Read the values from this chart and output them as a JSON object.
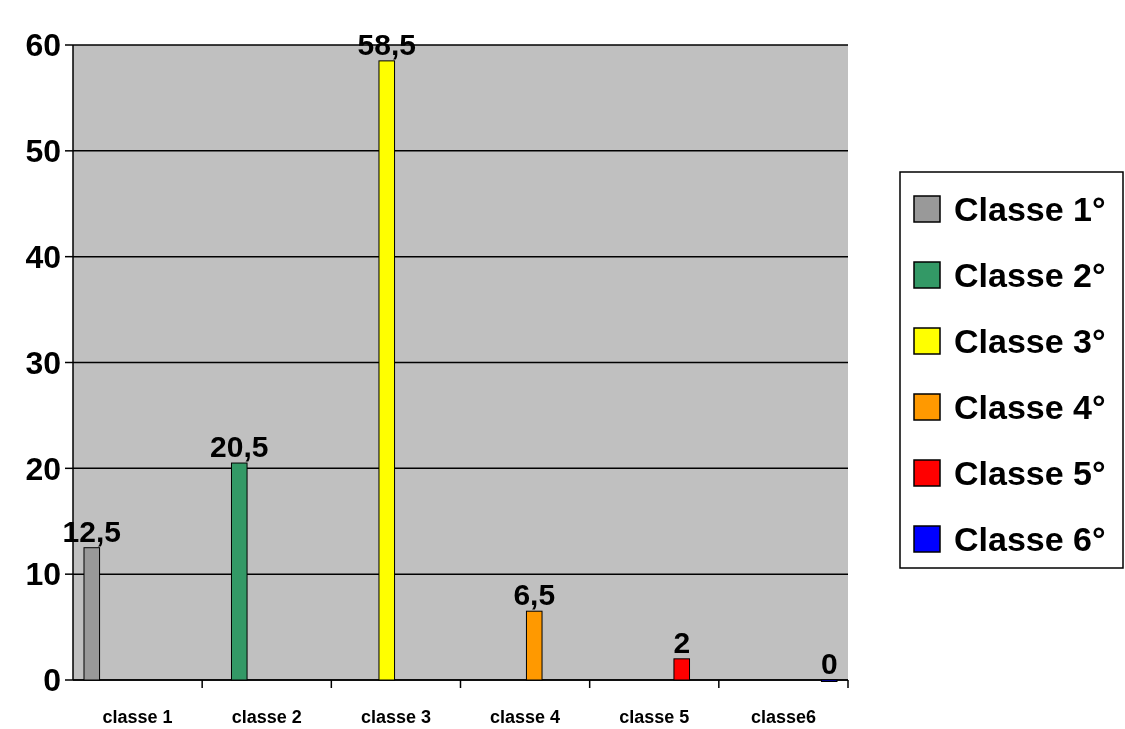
{
  "chart_data": {
    "type": "bar",
    "categories": [
      "classe 1",
      "classe 2",
      "classe 3",
      "classe 4",
      "classe 5",
      "classe6"
    ],
    "series": [
      {
        "name": "Classe 1°",
        "color": "#999999",
        "values": [
          12.5,
          null,
          null,
          null,
          null,
          null
        ],
        "value_labels": [
          "12,5",
          null,
          null,
          null,
          null,
          null
        ]
      },
      {
        "name": "Classe 2°",
        "color": "#339966",
        "values": [
          null,
          20.5,
          null,
          null,
          null,
          null
        ],
        "value_labels": [
          null,
          "20,5",
          null,
          null,
          null,
          null
        ]
      },
      {
        "name": "Classe 3°",
        "color": "#ffff00",
        "values": [
          null,
          null,
          58.5,
          null,
          null,
          null
        ],
        "value_labels": [
          null,
          null,
          "58,5",
          null,
          null,
          null
        ]
      },
      {
        "name": "Classe 4°",
        "color": "#ff9900",
        "values": [
          null,
          null,
          null,
          6.5,
          null,
          null
        ],
        "value_labels": [
          null,
          null,
          null,
          "6,5",
          null,
          null
        ]
      },
      {
        "name": "Classe 5°",
        "color": "#ff0000",
        "values": [
          null,
          null,
          null,
          null,
          2,
          null
        ],
        "value_labels": [
          null,
          null,
          null,
          null,
          "2",
          null
        ]
      },
      {
        "name": "Classe 6°",
        "color": "#0000ff",
        "values": [
          null,
          null,
          null,
          null,
          null,
          0
        ],
        "value_labels": [
          null,
          null,
          null,
          null,
          null,
          "0"
        ]
      }
    ],
    "ylim": [
      0,
      60
    ],
    "yticks": [
      0,
      10,
      20,
      30,
      40,
      50,
      60
    ],
    "grid": "y",
    "legend": "right"
  }
}
